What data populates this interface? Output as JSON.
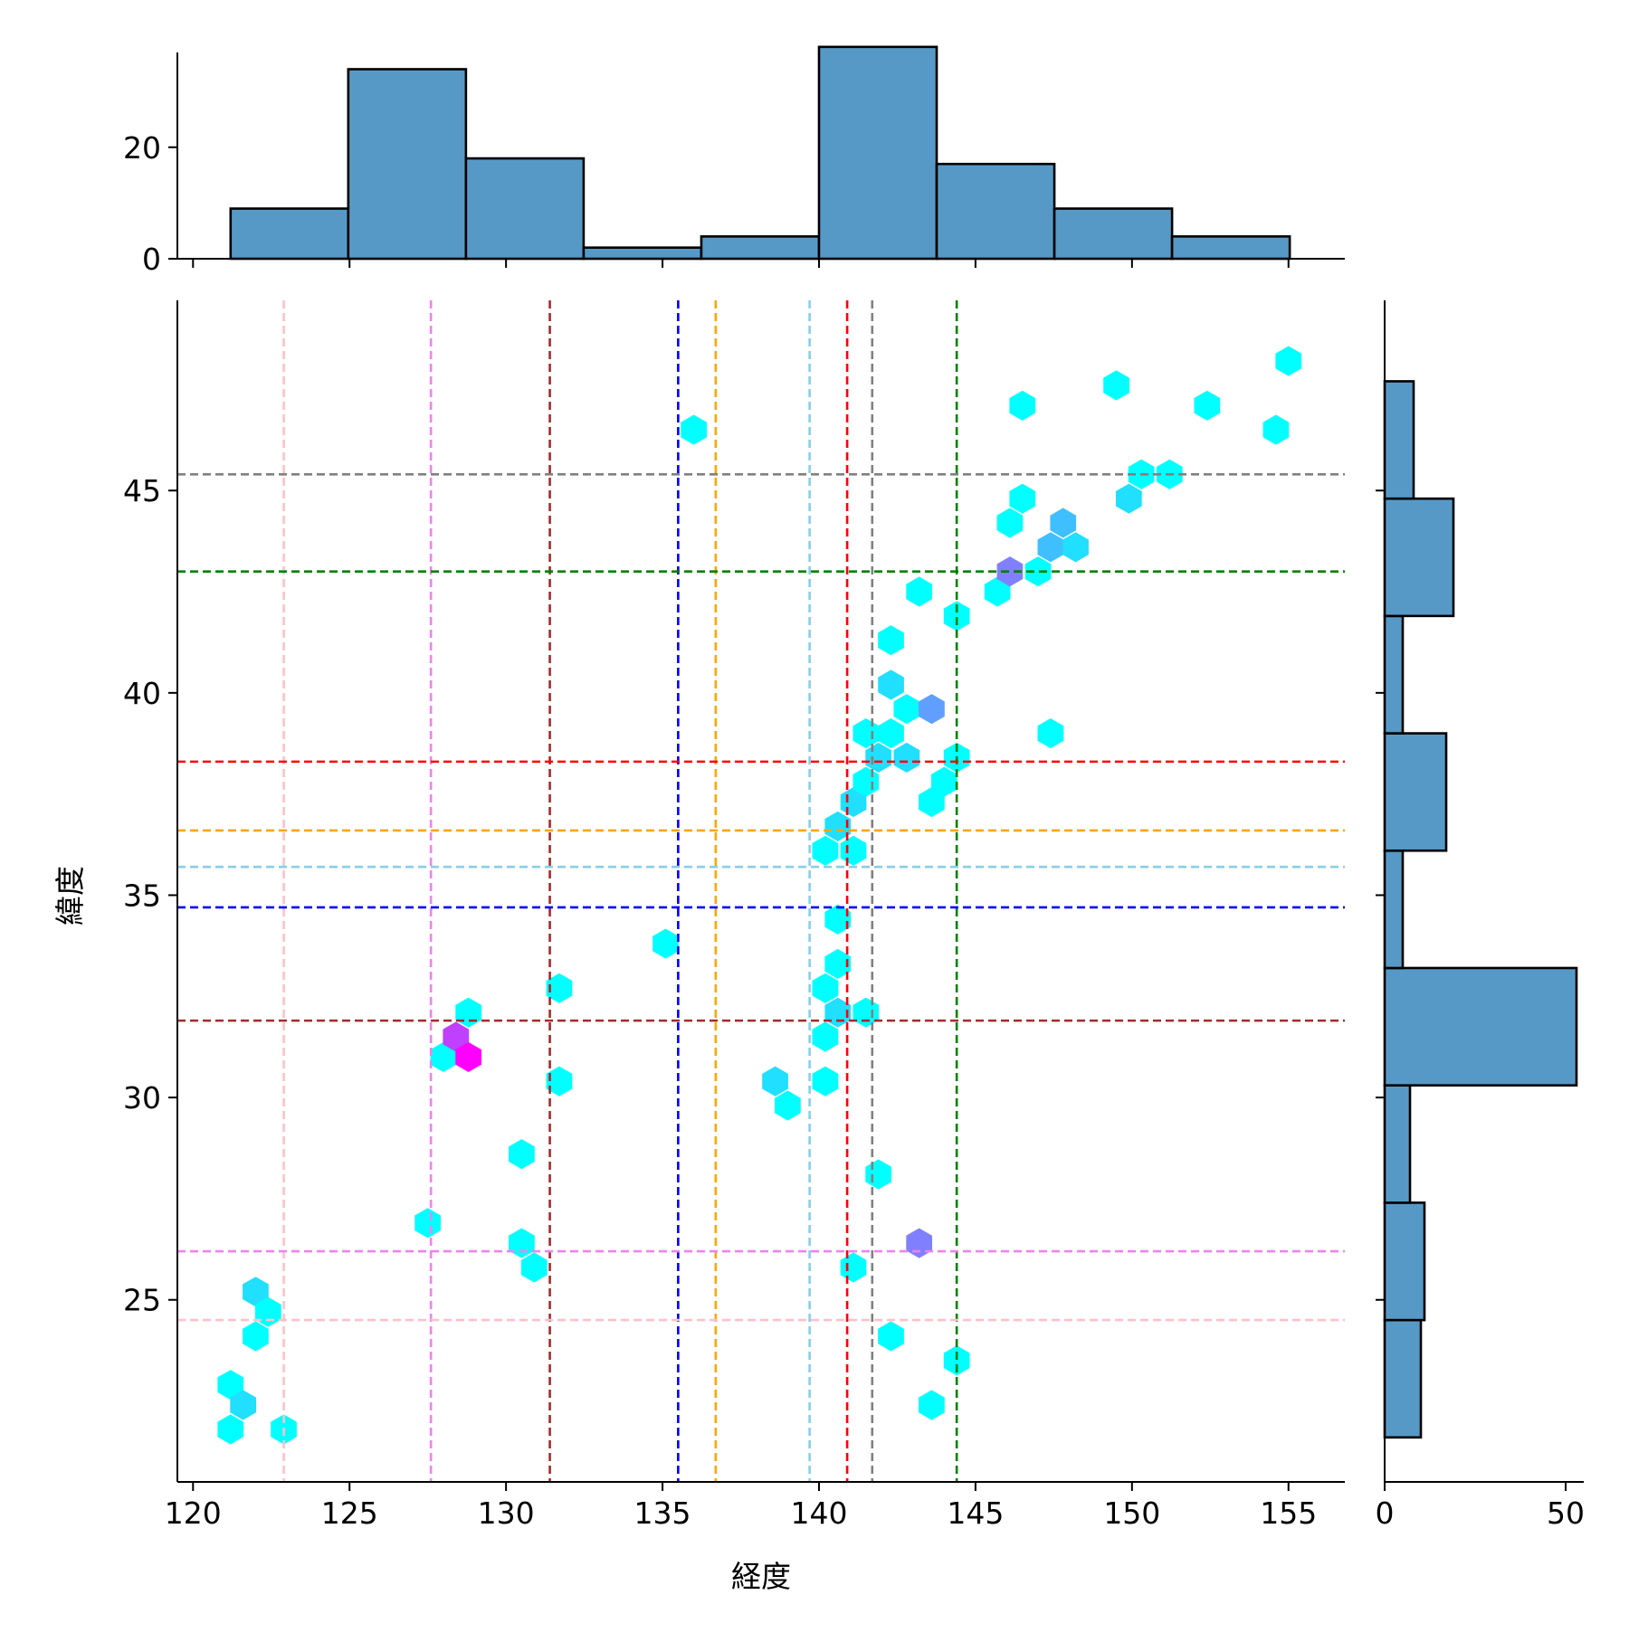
{
  "chart_data": {
    "type": "hexbin-jointplot",
    "xlabel": "経度",
    "ylabel": "緯度",
    "xlim": [
      119.5,
      156.8
    ],
    "ylim": [
      20.5,
      49.7
    ],
    "xticks": [
      120,
      125,
      130,
      135,
      140,
      145,
      150,
      155
    ],
    "yticks": [
      25,
      30,
      35,
      40,
      45
    ],
    "top_hist": {
      "bin_edges": [
        121.2,
        124.96,
        128.72,
        132.48,
        136.24,
        140.0,
        143.76,
        147.52,
        151.28,
        155.04
      ],
      "counts": [
        9,
        34,
        18,
        2,
        4,
        38,
        17,
        9,
        4
      ],
      "yticks": [
        0,
        20
      ],
      "ylim": [
        0,
        37
      ]
    },
    "right_hist": {
      "bin_edges": [
        21.6,
        24.5,
        27.4,
        30.3,
        33.2,
        36.1,
        39.0,
        41.9,
        44.8,
        47.7
      ],
      "counts": [
        10,
        11,
        7,
        53,
        5,
        17,
        5,
        19,
        8
      ],
      "xticks": [
        0,
        50
      ],
      "xlim": [
        0,
        55
      ]
    },
    "hexbins": [
      {
        "x": 121.2,
        "y": 21.8,
        "count": 1
      },
      {
        "x": 122.9,
        "y": 21.8,
        "count": 1
      },
      {
        "x": 121.2,
        "y": 22.9,
        "count": 1
      },
      {
        "x": 121.6,
        "y": 22.4,
        "count": 2
      },
      {
        "x": 122.0,
        "y": 24.1,
        "count": 1
      },
      {
        "x": 122.0,
        "y": 25.2,
        "count": 2
      },
      {
        "x": 122.4,
        "y": 24.7,
        "count": 1
      },
      {
        "x": 127.5,
        "y": 26.9,
        "count": 1
      },
      {
        "x": 128.0,
        "y": 31.0,
        "count": 1
      },
      {
        "x": 128.4,
        "y": 31.5,
        "count": 7
      },
      {
        "x": 128.8,
        "y": 31.0,
        "count": 9
      },
      {
        "x": 128.8,
        "y": 32.1,
        "count": 1
      },
      {
        "x": 130.5,
        "y": 26.4,
        "count": 1
      },
      {
        "x": 130.9,
        "y": 25.8,
        "count": 1
      },
      {
        "x": 130.5,
        "y": 28.6,
        "count": 1
      },
      {
        "x": 131.7,
        "y": 30.4,
        "count": 1
      },
      {
        "x": 131.7,
        "y": 32.7,
        "count": 1
      },
      {
        "x": 135.1,
        "y": 33.8,
        "count": 1
      },
      {
        "x": 136.0,
        "y": 46.5,
        "count": 1
      },
      {
        "x": 138.6,
        "y": 30.4,
        "count": 2
      },
      {
        "x": 139.0,
        "y": 29.8,
        "count": 1
      },
      {
        "x": 140.2,
        "y": 30.4,
        "count": 1
      },
      {
        "x": 140.2,
        "y": 31.5,
        "count": 1
      },
      {
        "x": 140.2,
        "y": 32.7,
        "count": 1
      },
      {
        "x": 140.6,
        "y": 32.1,
        "count": 2
      },
      {
        "x": 140.6,
        "y": 33.3,
        "count": 1
      },
      {
        "x": 140.6,
        "y": 34.4,
        "count": 1
      },
      {
        "x": 141.5,
        "y": 32.1,
        "count": 1
      },
      {
        "x": 140.2,
        "y": 36.1,
        "count": 1
      },
      {
        "x": 141.1,
        "y": 36.1,
        "count": 1
      },
      {
        "x": 140.6,
        "y": 36.7,
        "count": 2
      },
      {
        "x": 141.1,
        "y": 37.3,
        "count": 2
      },
      {
        "x": 141.5,
        "y": 37.8,
        "count": 1
      },
      {
        "x": 141.9,
        "y": 38.4,
        "count": 2
      },
      {
        "x": 142.8,
        "y": 38.4,
        "count": 2
      },
      {
        "x": 141.5,
        "y": 39.0,
        "count": 1
      },
      {
        "x": 142.3,
        "y": 39.0,
        "count": 1
      },
      {
        "x": 142.8,
        "y": 39.6,
        "count": 1
      },
      {
        "x": 142.3,
        "y": 40.2,
        "count": 2
      },
      {
        "x": 142.3,
        "y": 41.3,
        "count": 1
      },
      {
        "x": 143.6,
        "y": 39.6,
        "count": 4
      },
      {
        "x": 143.6,
        "y": 37.3,
        "count": 1
      },
      {
        "x": 144.0,
        "y": 37.8,
        "count": 1
      },
      {
        "x": 144.4,
        "y": 38.4,
        "count": 1
      },
      {
        "x": 141.9,
        "y": 28.1,
        "count": 1
      },
      {
        "x": 141.1,
        "y": 25.8,
        "count": 1
      },
      {
        "x": 143.2,
        "y": 26.4,
        "count": 5
      },
      {
        "x": 142.3,
        "y": 24.1,
        "count": 1
      },
      {
        "x": 144.4,
        "y": 23.5,
        "count": 1
      },
      {
        "x": 143.6,
        "y": 22.4,
        "count": 1
      },
      {
        "x": 143.2,
        "y": 42.5,
        "count": 1
      },
      {
        "x": 144.4,
        "y": 41.9,
        "count": 1
      },
      {
        "x": 145.7,
        "y": 42.5,
        "count": 1
      },
      {
        "x": 146.1,
        "y": 43.0,
        "count": 5
      },
      {
        "x": 147.0,
        "y": 43.0,
        "count": 1
      },
      {
        "x": 146.1,
        "y": 44.2,
        "count": 1
      },
      {
        "x": 146.5,
        "y": 44.8,
        "count": 1
      },
      {
        "x": 147.4,
        "y": 43.6,
        "count": 3
      },
      {
        "x": 147.8,
        "y": 44.2,
        "count": 3
      },
      {
        "x": 148.2,
        "y": 43.6,
        "count": 2
      },
      {
        "x": 147.4,
        "y": 39.0,
        "count": 1
      },
      {
        "x": 149.9,
        "y": 44.8,
        "count": 2
      },
      {
        "x": 150.3,
        "y": 45.4,
        "count": 1
      },
      {
        "x": 151.2,
        "y": 45.4,
        "count": 1
      },
      {
        "x": 146.5,
        "y": 47.1,
        "count": 1
      },
      {
        "x": 149.5,
        "y": 47.6,
        "count": 1
      },
      {
        "x": 152.4,
        "y": 47.1,
        "count": 1
      },
      {
        "x": 154.6,
        "y": 46.5,
        "count": 1
      },
      {
        "x": 155.0,
        "y": 48.2,
        "count": 1
      }
    ],
    "colormap": "cool",
    "vlines": [
      {
        "x": 122.9,
        "color": "#ffc0cb"
      },
      {
        "x": 127.6,
        "color": "#ee82ee"
      },
      {
        "x": 131.4,
        "color": "#a52a2a"
      },
      {
        "x": 135.5,
        "color": "#0000ff"
      },
      {
        "x": 136.7,
        "color": "#ffa500"
      },
      {
        "x": 139.7,
        "color": "#87ceeb"
      },
      {
        "x": 140.9,
        "color": "#ff0000"
      },
      {
        "x": 141.7,
        "color": "#808080"
      },
      {
        "x": 144.4,
        "color": "#008000"
      }
    ],
    "hlines": [
      {
        "y": 45.4,
        "color": "#808080"
      },
      {
        "y": 43.0,
        "color": "#008000"
      },
      {
        "y": 38.3,
        "color": "#ff0000"
      },
      {
        "y": 36.6,
        "color": "#ffa500"
      },
      {
        "y": 35.7,
        "color": "#87ceeb"
      },
      {
        "y": 34.7,
        "color": "#0000ff"
      },
      {
        "y": 31.9,
        "color": "#a52a2a"
      },
      {
        "y": 26.2,
        "color": "#ee82ee"
      },
      {
        "y": 24.5,
        "color": "#ffc0cb"
      }
    ],
    "hist_color": "#5799c6"
  }
}
